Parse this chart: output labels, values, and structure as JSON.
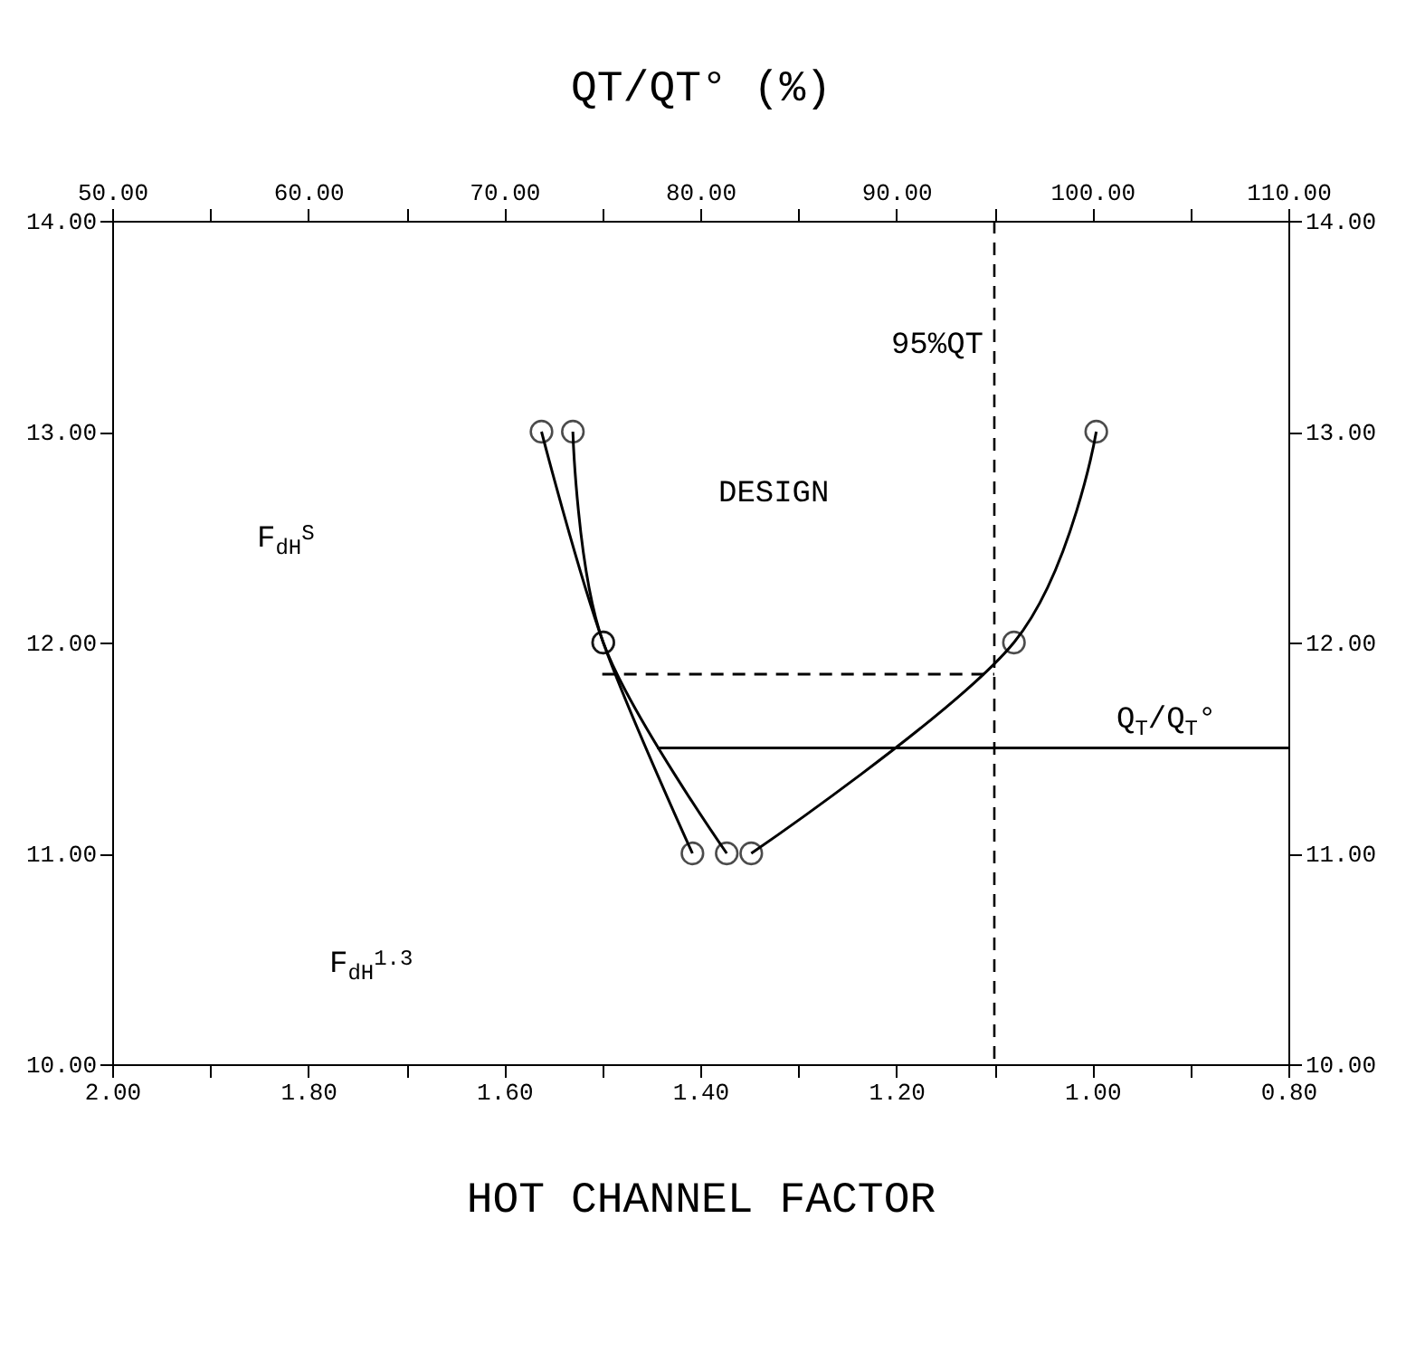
{
  "chart_data": {
    "type": "line",
    "xlabel": "HOT CHANNEL FACTOR",
    "x2label": "QT/QT° (%)",
    "xlim": [
      2.0,
      0.8
    ],
    "xticks": [
      {
        "value": 2.0,
        "label": "2.00"
      },
      {
        "value": 1.9,
        "label": null
      },
      {
        "value": 1.8,
        "label": "1.80"
      },
      {
        "value": 1.7,
        "label": null
      },
      {
        "value": 1.6,
        "label": "1.60"
      },
      {
        "value": 1.5,
        "label": null
      },
      {
        "value": 1.4,
        "label": "1.40"
      },
      {
        "value": 1.3,
        "label": null
      },
      {
        "value": 1.2,
        "label": "1.20"
      },
      {
        "value": 1.1,
        "label": null
      },
      {
        "value": 1.0,
        "label": "1.00"
      },
      {
        "value": 0.9,
        "label": null
      },
      {
        "value": 0.8,
        "label": "0.80"
      }
    ],
    "x2lim": [
      50,
      110
    ],
    "x2ticks": [
      {
        "value": 50,
        "label": "50.00"
      },
      {
        "value": 55,
        "label": null
      },
      {
        "value": 60,
        "label": "60.00"
      },
      {
        "value": 65,
        "label": null
      },
      {
        "value": 70,
        "label": "70.00"
      },
      {
        "value": 75,
        "label": null
      },
      {
        "value": 80,
        "label": "80.00"
      },
      {
        "value": 85,
        "label": null
      },
      {
        "value": 90,
        "label": "90.00"
      },
      {
        "value": 95,
        "label": null
      },
      {
        "value": 100,
        "label": "100.00"
      },
      {
        "value": 105,
        "label": null
      },
      {
        "value": 110,
        "label": "110.00"
      }
    ],
    "ylim": [
      10,
      14
    ],
    "yticks": [
      {
        "value": 10,
        "label": "10.00"
      },
      {
        "value": 11,
        "label": "11.00"
      },
      {
        "value": 12,
        "label": "12.00"
      },
      {
        "value": 13,
        "label": "13.00"
      },
      {
        "value": 14,
        "label": "14.00"
      }
    ],
    "y2lim": [
      10,
      14
    ],
    "y2ticks": [
      {
        "value": 10,
        "label": "10.00"
      },
      {
        "value": 11,
        "label": "11.00"
      },
      {
        "value": 12,
        "label": "12.00"
      },
      {
        "value": 13,
        "label": "13.00"
      },
      {
        "value": 14,
        "label": "14.00"
      }
    ],
    "series": [
      {
        "color": "#000000",
        "x": [
          1.408,
          1.499,
          1.562
        ],
        "values": [
          11,
          12,
          13
        ]
      },
      {
        "color": "#000000",
        "x": [
          1.373,
          1.499,
          1.53
        ],
        "values": [
          11,
          12,
          13
        ]
      },
      {
        "color": "#000000",
        "axis": "x2",
        "x": [
          82.6,
          96.0,
          100.2
        ],
        "values": [
          11,
          12,
          13
        ]
      },
      {
        "color": "#000000",
        "marker": "none",
        "line_style": "dashed",
        "x": [
          1.5,
          1.1
        ],
        "values": [
          11.85,
          11.85
        ]
      },
      {
        "color": "#000000",
        "marker": "none",
        "x": [
          1.444,
          0.8
        ],
        "values": [
          11.5,
          11.5
        ]
      }
    ],
    "ref_lines": [
      {
        "axis": "x2",
        "value": 95,
        "label": "95%QT",
        "line_style": "dashed",
        "color": "#000000"
      }
    ],
    "annotations": [
      "F$_{dH}$$^{S}$",
      "F$_{dH}$$^{1.3}$",
      "Q$_{T}$/Q$_{T}$°",
      "DESIGN"
    ],
    "marker": "circle",
    "line_style": "solid",
    "grid": false
  }
}
